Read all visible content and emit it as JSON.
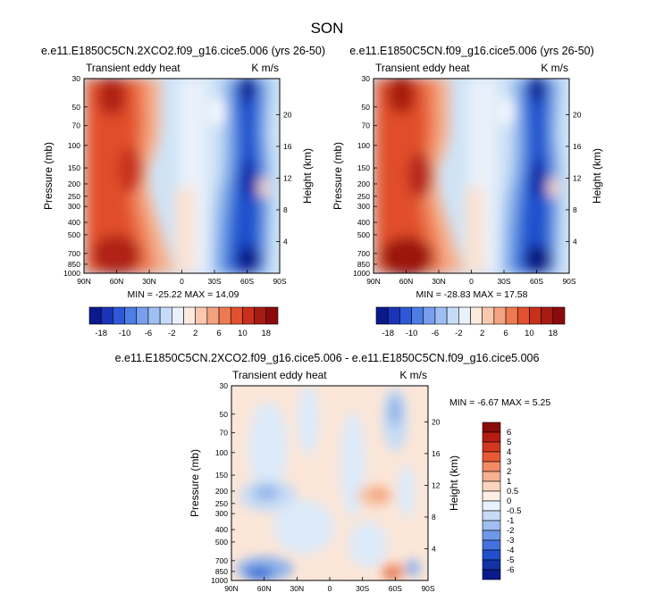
{
  "figure": {
    "title": "SON"
  },
  "colors": {
    "blue_extreme": "#0a1a8c",
    "red_extreme": "#8b0b0b",
    "neutral": "#ffffff"
  },
  "chart_data": [
    {
      "type": "heatmap",
      "title": "e.e11.E1850C5CN.2XCO2.f09_g16.cice5.006 (yrs 26-50)",
      "field_label": "Transient eddy heat",
      "units": "K m/s",
      "xlabel": "",
      "ylabel": "Pressure (mb)",
      "ylabel_right": "Height (km)",
      "x_ticks": [
        "90N",
        "60N",
        "30N",
        "0",
        "30S",
        "60S",
        "90S"
      ],
      "y_ticks": [
        "30",
        "50",
        "70",
        "100",
        "150",
        "200",
        "250",
        "300",
        "400",
        "500",
        "700",
        "850",
        "1000"
      ],
      "height_ticks": [
        "4",
        "8",
        "12",
        "16",
        "20"
      ],
      "stats": "MIN = -25.22  MAX = 14.09",
      "colorbar_labels": [
        "-18",
        "-10",
        "-6",
        "-2",
        "2",
        "6",
        "10",
        "18"
      ],
      "features": [
        {
          "lat": 60,
          "pressure": 30,
          "value": 14
        },
        {
          "lat": 50,
          "pressure": 150,
          "value": 10
        },
        {
          "lat": 60,
          "pressure": 900,
          "value": 14
        },
        {
          "lat": -50,
          "pressure": 30,
          "value": -18
        },
        {
          "lat": -55,
          "pressure": 200,
          "value": -18
        },
        {
          "lat": -55,
          "pressure": 850,
          "value": -20
        }
      ]
    },
    {
      "type": "heatmap",
      "title": "e.e11.E1850C5CN.f09_g16.cice5.006 (yrs 26-50)",
      "field_label": "Transient eddy heat",
      "units": "K m/s",
      "xlabel": "",
      "ylabel": "Pressure (mb)",
      "ylabel_right": "Height (km)",
      "x_ticks": [
        "90N",
        "60N",
        "30N",
        "0",
        "30S",
        "60S",
        "90S"
      ],
      "y_ticks": [
        "30",
        "50",
        "70",
        "100",
        "150",
        "200",
        "250",
        "300",
        "400",
        "500",
        "700",
        "850",
        "1000"
      ],
      "height_ticks": [
        "4",
        "8",
        "12",
        "16",
        "20"
      ],
      "stats": "MIN = -28.83  MAX = 17.58",
      "colorbar_labels": [
        "-18",
        "-10",
        "-6",
        "-2",
        "2",
        "6",
        "10",
        "18"
      ],
      "features": [
        {
          "lat": 60,
          "pressure": 30,
          "value": 16
        },
        {
          "lat": 50,
          "pressure": 150,
          "value": 12
        },
        {
          "lat": 60,
          "pressure": 900,
          "value": 17
        },
        {
          "lat": -50,
          "pressure": 30,
          "value": -20
        },
        {
          "lat": -55,
          "pressure": 200,
          "value": -20
        },
        {
          "lat": -55,
          "pressure": 850,
          "value": -24
        }
      ]
    },
    {
      "type": "heatmap",
      "title": "e.e11.E1850C5CN.2XCO2.f09_g16.cice5.006 - e.e11.E1850C5CN.f09_g16.cice5.006",
      "field_label": "Transient eddy heat",
      "units": "K m/s",
      "xlabel": "",
      "ylabel": "Pressure (mb)",
      "ylabel_right": "Height (km)",
      "x_ticks": [
        "90N",
        "60N",
        "30N",
        "0",
        "30S",
        "60S",
        "90S"
      ],
      "y_ticks": [
        "30",
        "50",
        "70",
        "100",
        "150",
        "200",
        "250",
        "300",
        "400",
        "500",
        "700",
        "850",
        "1000"
      ],
      "height_ticks": [
        "4",
        "8",
        "12",
        "16",
        "20"
      ],
      "stats": "MIN =  -6.67  MAX =   5.25",
      "colorbar_labels": [
        "6",
        "5",
        "4",
        "3",
        "2",
        "1",
        "0.5",
        "0",
        "-0.5",
        "-1",
        "-2",
        "-3",
        "-4",
        "-5",
        "-6"
      ],
      "features": [
        {
          "lat": 60,
          "pressure": 1000,
          "value": -6
        },
        {
          "lat": 45,
          "pressure": 200,
          "value": -2
        },
        {
          "lat": -45,
          "pressure": 200,
          "value": 2.5
        },
        {
          "lat": -55,
          "pressure": 40,
          "value": -1.5
        },
        {
          "lat": -55,
          "pressure": 950,
          "value": 4
        }
      ]
    }
  ]
}
